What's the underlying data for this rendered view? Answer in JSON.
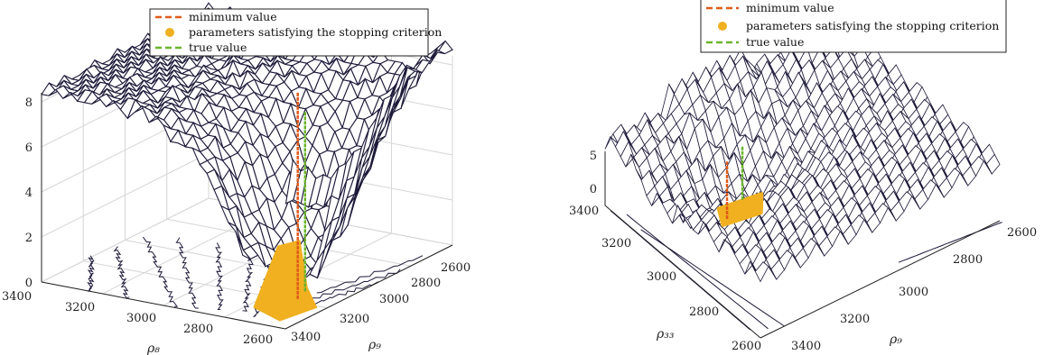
{
  "chart_data": [
    {
      "type": "surface3d",
      "title": "",
      "xlabel": "ρ₉",
      "ylabel": "ρ₈",
      "zlabel": "",
      "x_ticks": [
        "2600",
        "2800",
        "3000",
        "3200",
        "3400"
      ],
      "y_ticks": [
        "3400",
        "3200",
        "3000",
        "2800",
        "2600"
      ],
      "z_ticks": [
        "0",
        "2",
        "4",
        "6",
        "8"
      ],
      "xlim": [
        2600,
        3400
      ],
      "ylim": [
        2600,
        3400
      ],
      "zlim": [
        0,
        8.4
      ],
      "legend": [
        "minimum value",
        "parameters satisfying the stopping criterion",
        "true value"
      ],
      "legend_position": "top-center",
      "minimum_value": {
        "rho9": 3150,
        "rho8": 2680
      },
      "true_value": {
        "rho9": 3100,
        "rho8": 2700
      },
      "grid": true
    },
    {
      "type": "surface3d",
      "title": "",
      "xlabel": "ρ₉",
      "ylabel": "ρ₃₃",
      "zlabel": "",
      "x_ticks": [
        "2600",
        "2800",
        "3000",
        "3200",
        "3400"
      ],
      "y_ticks": [
        "3400",
        "3200",
        "3000",
        "2800",
        "2600"
      ],
      "z_ticks": [
        "0",
        "5"
      ],
      "xlim": [
        2600,
        3400
      ],
      "ylim": [
        2600,
        3400
      ],
      "zlim": [
        0,
        8
      ],
      "legend": [
        "minimum value",
        "parameters satisfying the stopping criterion",
        "true value"
      ],
      "legend_position": "top",
      "minimum_value": {
        "rho9": 3200,
        "rho33": 2900
      },
      "true_value": {
        "rho9": 3100,
        "rho33": 2850
      },
      "grid": true
    }
  ],
  "colors": {
    "surface": "#1e1b3a",
    "minimum": "#e05a1a",
    "stopping": "#f0b020",
    "true": "#6ab42a",
    "grid": "#d0d0d0"
  }
}
